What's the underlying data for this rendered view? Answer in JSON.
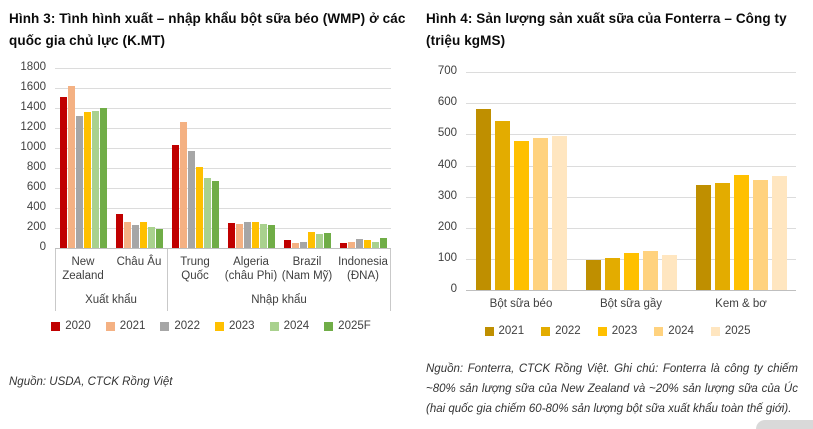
{
  "chart_data": [
    {
      "type": "bar",
      "title": "Hình 3: Tình hình xuất – nhập khẩu bột sữa béo (WMP) ở các quốc gia chủ lực (K.MT)",
      "ylim": [
        0,
        1800
      ],
      "ytick_step": 200,
      "grid": true,
      "legend_position": "bottom",
      "categories": [
        "New Zealand",
        "Châu Âu",
        "Trung Quốc",
        "Algeria (châu Phi)",
        "Brazil (Nam Mỹ)",
        "Indonesia (ĐNA)"
      ],
      "category_groups": [
        {
          "label": "Xuất khẩu",
          "span": 2
        },
        {
          "label": "Nhập khẩu",
          "span": 4
        }
      ],
      "series": [
        {
          "name": "2020",
          "color": "#C00000",
          "values": [
            1510,
            340,
            1035,
            250,
            80,
            50
          ]
        },
        {
          "name": "2021",
          "color": "#F4B183",
          "values": [
            1620,
            260,
            1265,
            235,
            45,
            65
          ]
        },
        {
          "name": "2022",
          "color": "#A6A6A6",
          "values": [
            1320,
            230,
            970,
            255,
            65,
            90
          ]
        },
        {
          "name": "2023",
          "color": "#FFC000",
          "values": [
            1360,
            255,
            805,
            260,
            155,
            75
          ]
        },
        {
          "name": "2024",
          "color": "#A9D18E",
          "values": [
            1370,
            210,
            700,
            245,
            140,
            65
          ]
        },
        {
          "name": "2025F",
          "color": "#70AD47",
          "values": [
            1400,
            190,
            665,
            230,
            145,
            95
          ]
        }
      ],
      "source": "Nguồn: USDA, CTCK Rồng Việt"
    },
    {
      "type": "bar",
      "title": "Hình 4: Sản lượng sản xuất sữa của Fonterra – Công ty (triệu kgMS)",
      "ylim": [
        0,
        700
      ],
      "ytick_step": 100,
      "grid": true,
      "legend_position": "bottom",
      "categories": [
        "Bột sữa béo",
        "Bột sữa gầy",
        "Kem & bơ"
      ],
      "series": [
        {
          "name": "2021",
          "color": "#BF8F00",
          "values": [
            580,
            95,
            338
          ]
        },
        {
          "name": "2022",
          "color": "#E3AC00",
          "values": [
            542,
            102,
            342
          ]
        },
        {
          "name": "2023",
          "color": "#FFC000",
          "values": [
            480,
            118,
            368
          ]
        },
        {
          "name": "2024",
          "color": "#FFD27E",
          "values": [
            488,
            125,
            352
          ]
        },
        {
          "name": "2025",
          "color": "#FFE6C0",
          "values": [
            495,
            113,
            365
          ]
        }
      ],
      "source": "Nguồn: Fonterra, CTCK Rồng Việt. Ghi chú: Fonterra là công ty chiếm ~80% sản lượng sữa của New Zealand và ~20% sản lượng sữa của Úc (hai quốc gia chiếm 60-80% sản lượng bột sữa xuất khẩu toàn thế giới)."
    }
  ]
}
